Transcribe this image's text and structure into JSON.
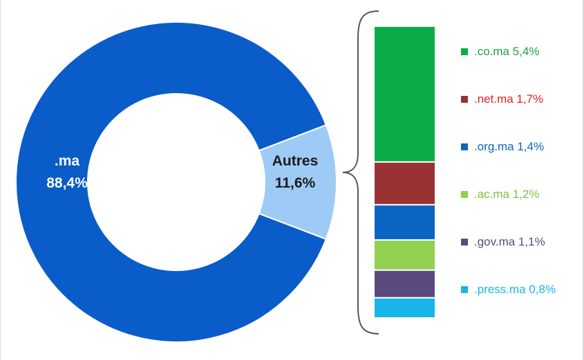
{
  "chart_data": [
    {
      "type": "pie",
      "variant": "donut",
      "slices": [
        {
          "label": ".ma",
          "value": 88.4,
          "value_text": "88,4%",
          "color": "#0a5cc9",
          "label_color": "#ffffff"
        },
        {
          "label": "Autres",
          "value": 11.6,
          "value_text": "11,6%",
          "color": "#9ecbf5",
          "label_color": "#1a1a1a"
        }
      ]
    },
    {
      "type": "bar",
      "variant": "stacked-single-column",
      "bracket": true,
      "segments": [
        {
          "label": ".co.ma",
          "value": 5.4,
          "value_text": "5,4%",
          "color": "#0bad48",
          "text_color": "#1aa04a"
        },
        {
          "label": ".net.ma",
          "value": 1.7,
          "value_text": "1,7%",
          "color": "#993333",
          "text_color": "#e0211f"
        },
        {
          "label": ".org.ma",
          "value": 1.4,
          "value_text": "1,4%",
          "color": "#0a66c2",
          "text_color": "#0a66c2"
        },
        {
          "label": ".ac.ma",
          "value": 1.2,
          "value_text": "1,2%",
          "color": "#92d050",
          "text_color": "#7fbf3f"
        },
        {
          "label": ".gov.ma",
          "value": 1.1,
          "value_text": "1,1%",
          "color": "#5c4a7e",
          "text_color": "#5c4a7e"
        },
        {
          "label": ".press.ma",
          "value": 0.8,
          "value_text": "0,8%",
          "color": "#19b4e8",
          "text_color": "#19b4e8"
        }
      ]
    }
  ]
}
